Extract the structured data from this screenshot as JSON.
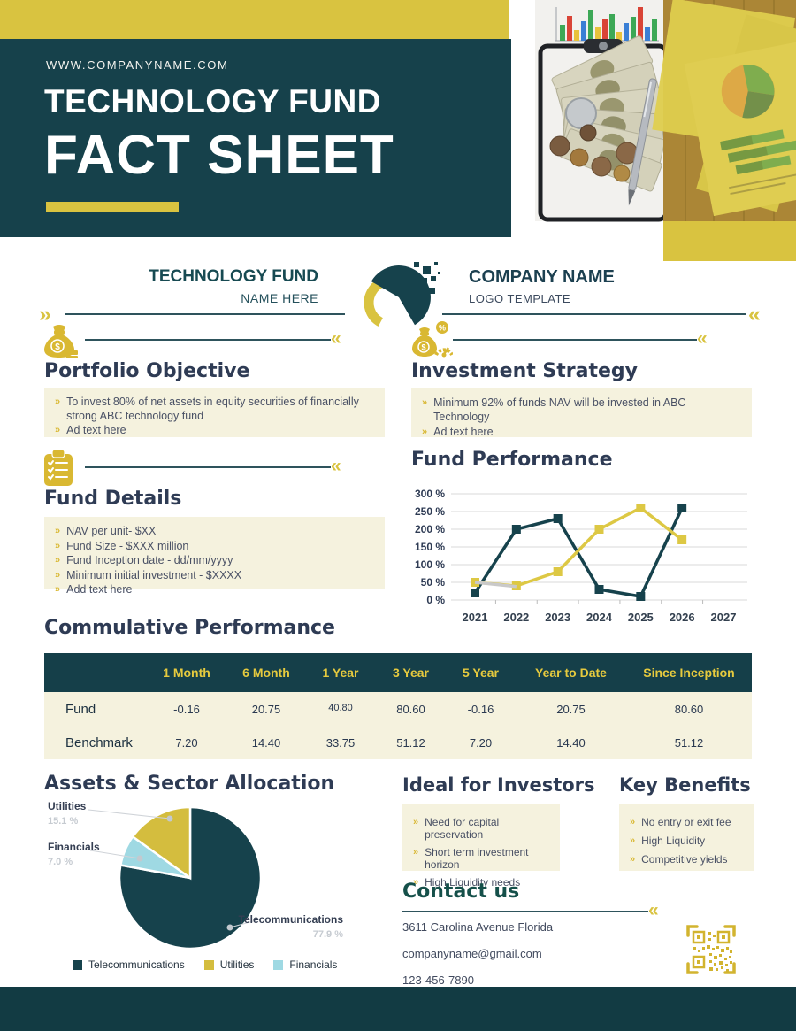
{
  "header": {
    "website": "WWW.COMPANYNAME.COM",
    "title_line1": "TECHNOLOGY FUND",
    "title_line2": "FACT SHEET"
  },
  "logo_band": {
    "left_title": "TECHNOLOGY FUND",
    "left_subtitle": "NAME HERE",
    "right_title": "COMPANY NAME",
    "right_subtitle": "LOGO TEMPLATE"
  },
  "portfolio_objective": {
    "heading": "Portfolio Objective",
    "items": [
      "To invest 80% of net assets in equity securities of financially strong ABC technology fund",
      "Ad text here"
    ]
  },
  "investment_strategy": {
    "heading": "Investment Strategy",
    "items": [
      "Minimum 92% of funds NAV will be invested in ABC  Technology",
      "Ad text here"
    ]
  },
  "fund_details": {
    "heading": "Fund Details",
    "items": [
      "NAV per unit- $XX",
      "Fund Size - $XXX million",
      "Fund Inception date - dd/mm/yyyy",
      "Minimum initial investment - $XXXX",
      "Add text here"
    ]
  },
  "fund_performance": {
    "heading": "Fund Performance"
  },
  "cumulative_performance": {
    "heading": "Commulative Performance",
    "columns": [
      "1 Month",
      "6 Month",
      "1 Year",
      "3 Year",
      "5 Year",
      "Year to Date",
      "Since Inception"
    ],
    "rows": [
      {
        "label": "Fund",
        "values": [
          "-0.16",
          "20.75",
          "40.80",
          "80.60",
          "-0.16",
          "20.75",
          "80.60"
        ]
      },
      {
        "label": "Benchmark",
        "values": [
          "7.20",
          "14.40",
          "33.75",
          "51.12",
          "7.20",
          "14.40",
          "51.12"
        ]
      }
    ],
    "small_cells": [
      [
        0,
        2
      ]
    ]
  },
  "allocation": {
    "heading": "Assets & Sector Allocation"
  },
  "ideal_for_investors": {
    "heading": "Ideal for Investors",
    "items": [
      "Need for capital preservation",
      "Short term investment horizon",
      "High Liquidity needs"
    ]
  },
  "key_benefits": {
    "heading": "Key Benefits",
    "items": [
      "No entry or exit fee",
      "High Liquidity",
      "Competitive yields"
    ]
  },
  "contact": {
    "heading": "Contact us",
    "lines": [
      "3611 Carolina Avenue Florida",
      "companyname@gmail.com",
      "123-456-7890"
    ]
  },
  "chart_data": [
    {
      "type": "line",
      "title": "Fund Performance",
      "x": [
        2021,
        2022,
        2023,
        2024,
        2025,
        2026,
        2027
      ],
      "series": [
        {
          "color": "#16424c",
          "marker": true,
          "values": [
            20,
            200,
            230,
            30,
            10,
            260,
            null
          ]
        },
        {
          "color": "#ddc844",
          "marker": true,
          "values": [
            50,
            40,
            80,
            200,
            260,
            170,
            null
          ]
        },
        {
          "color": "#c9c9c9",
          "marker": false,
          "values": [
            50,
            38,
            null,
            null,
            null,
            null,
            null
          ]
        }
      ],
      "y_ticks": [
        0,
        50,
        100,
        150,
        200,
        250,
        300
      ],
      "y_tick_suffix": " %",
      "ylim": [
        0,
        300
      ],
      "grid": true,
      "legend": "none"
    },
    {
      "type": "pie",
      "title": "Assets & Sector Allocation",
      "labels": [
        "Telecommunications",
        "Utilities",
        "Financials"
      ],
      "values": [
        77.9,
        15.1,
        7.0
      ],
      "pct_labels": [
        "77.9 %",
        "15.1 %",
        "7.0 %"
      ],
      "colors": [
        "#16424c",
        "#d4bd3e",
        "#9fd9e3"
      ],
      "clockwise_order": [
        0,
        2,
        1
      ],
      "legend_position": "bottom"
    }
  ],
  "colors": {
    "accent_yellow": "#d9c340",
    "dark_teal": "#16414b",
    "cream": "#f5f2de",
    "heading_navy": "#2e3b54",
    "heading_teal": "#15504a"
  }
}
